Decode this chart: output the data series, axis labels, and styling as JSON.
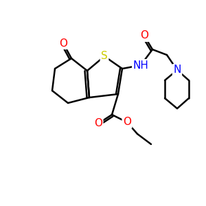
{
  "bg_color": "#ffffff",
  "atom_colors": {
    "S": "#cccc00",
    "N": "#0000ff",
    "O": "#ff0000",
    "C": "#000000",
    "H": "#000000"
  },
  "bond_color": "#000000",
  "bond_width": 1.8,
  "figsize": [
    3.0,
    3.0
  ],
  "dpi": 100
}
